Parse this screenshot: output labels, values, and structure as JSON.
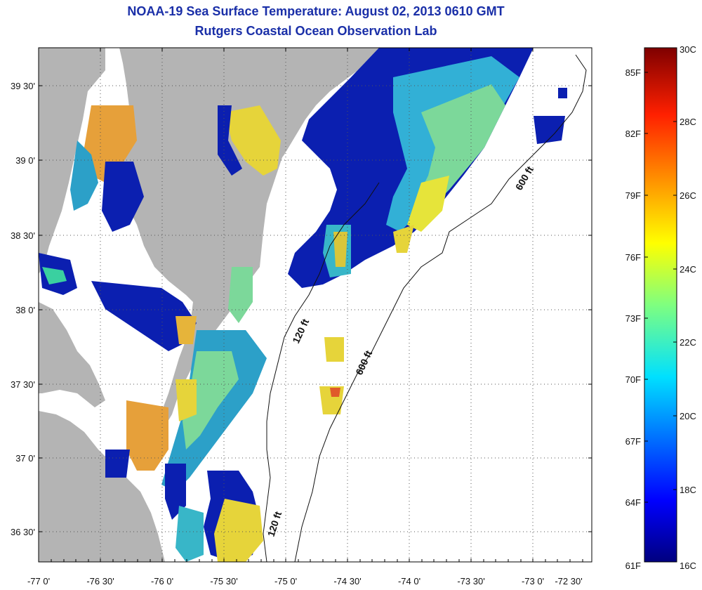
{
  "title": "NOAA-19 Sea Surface Temperature:  August 02, 2013 0610 GMT",
  "subtitle": "Rutgers Coastal Ocean Observation Lab",
  "x_ticks": [
    "-77 0'",
    "-76 30'",
    "-76 0'",
    "-75 30'",
    "-75 0'",
    "-74 30'",
    "-74 0'",
    "-73 30'",
    "-73 0'",
    "-72 30'"
  ],
  "y_ticks": [
    "39 30'",
    "39 0'",
    "38 30'",
    "38 0'",
    "37 30'",
    "37 0'",
    "36 30'"
  ],
  "colorbar": {
    "fahrenheit": [
      "85F",
      "82F",
      "79F",
      "76F",
      "73F",
      "70F",
      "67F",
      "64F",
      "61F"
    ],
    "celsius": [
      "30C",
      "28C",
      "26C",
      "24C",
      "22C",
      "20C",
      "18C",
      "16C"
    ]
  },
  "depth_labels": [
    "600 ft",
    "120 ft",
    "600 ft",
    "120 ft"
  ],
  "colors": {
    "land": "#b4b4b4",
    "title": "#1a2fa8",
    "ocean_nodata": "#ffffff"
  }
}
